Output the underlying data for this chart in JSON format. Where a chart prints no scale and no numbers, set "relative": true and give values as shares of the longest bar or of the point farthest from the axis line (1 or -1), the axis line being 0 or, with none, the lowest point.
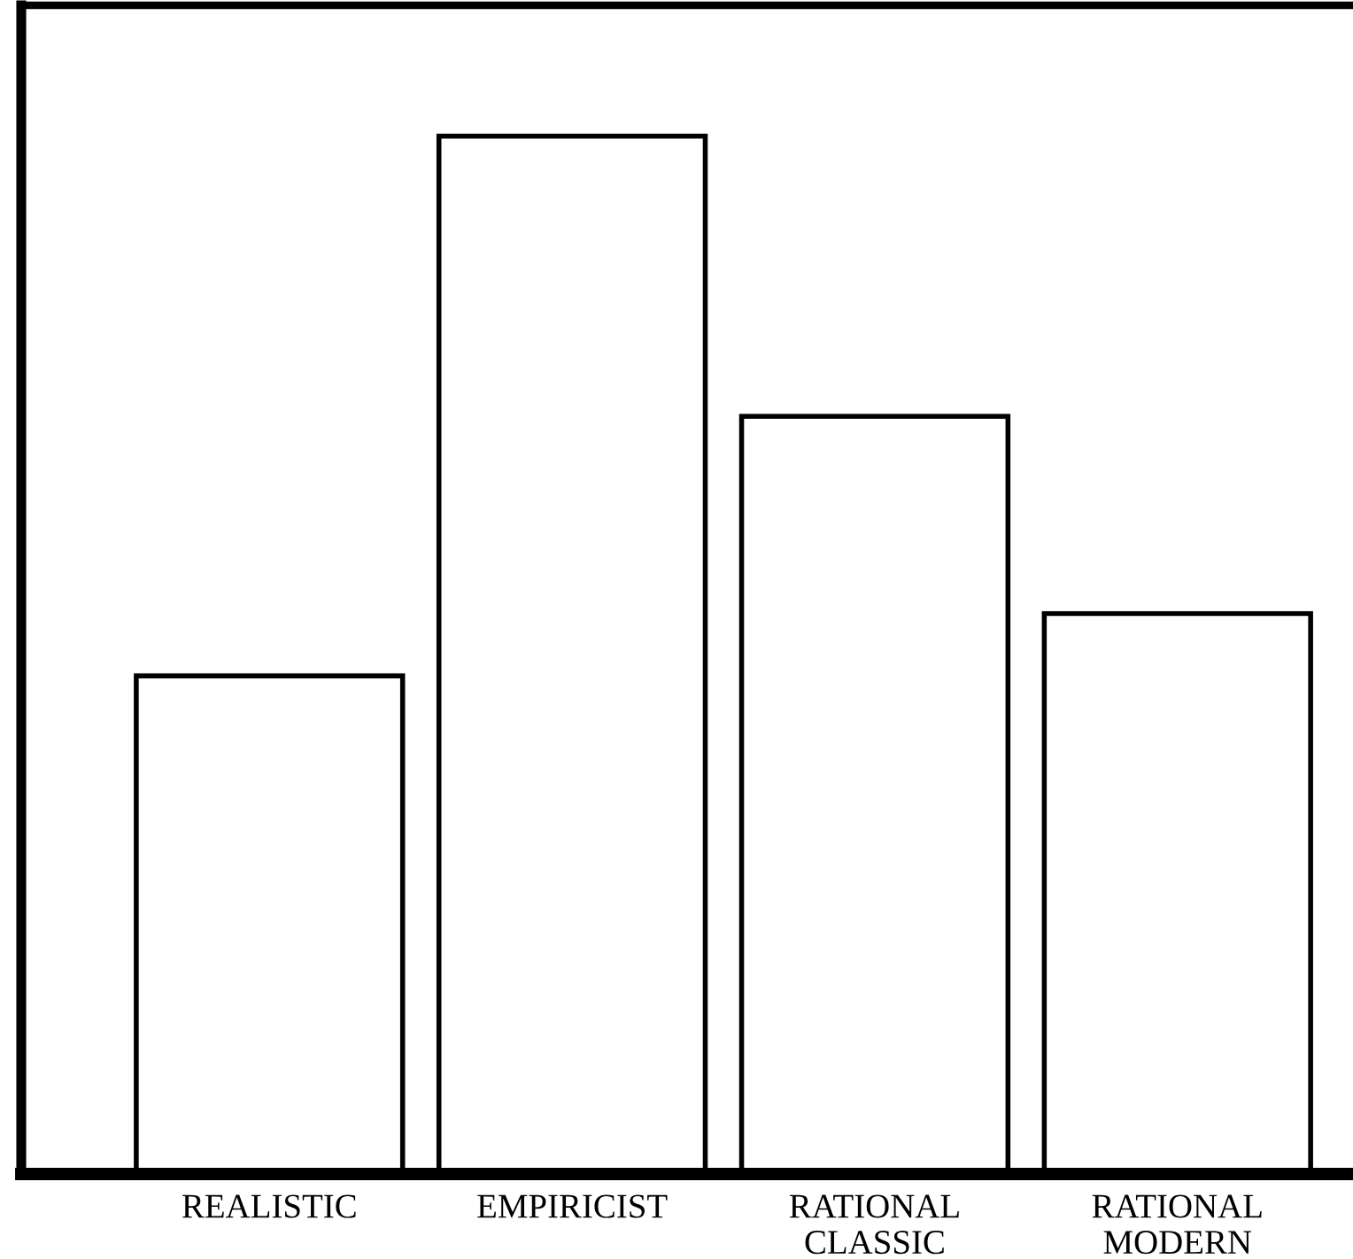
{
  "chart_data": {
    "type": "bar",
    "relative": true,
    "categories": [
      "REALISTIC",
      "EMPIRICIST",
      "RATIONAL\nCLASSIC",
      "RATIONAL\nMODERN"
    ],
    "values": [
      0.48,
      1,
      0.73,
      0.54
    ],
    "color": "#ffffff",
    "grid": false,
    "legend": false
  }
}
